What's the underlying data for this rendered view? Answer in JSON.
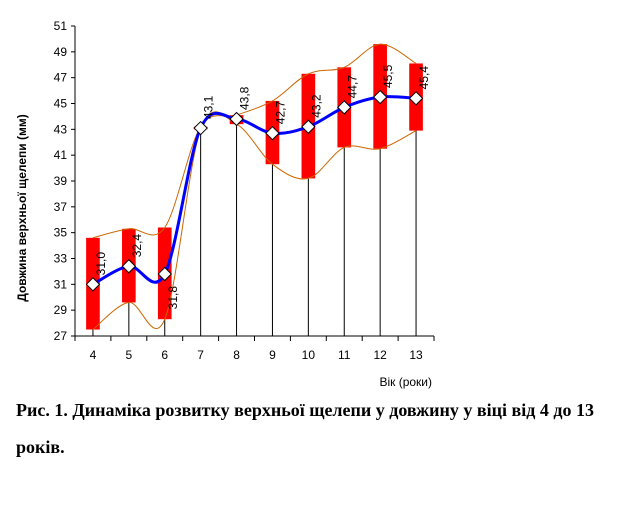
{
  "chart_data": {
    "type": "line",
    "title": "",
    "xlabel": "Вік (роки)",
    "ylabel": "Довжина верхньої щелепи (мм)",
    "ylim": [
      27,
      51
    ],
    "yticks": [
      "27",
      "29",
      "31",
      "33",
      "35",
      "37",
      "39",
      "41",
      "43",
      "45",
      "47",
      "49",
      "51"
    ],
    "categories": [
      "4",
      "5",
      "6",
      "7",
      "8",
      "9",
      "10",
      "11",
      "12",
      "13"
    ],
    "series": [
      {
        "values": [
          31.0,
          32.4,
          31.8,
          43.1,
          43.8,
          42.7,
          43.2,
          44.7,
          45.5,
          45.4
        ],
        "labels": [
          "31,0",
          "32,4",
          "31,8",
          "43,1",
          "43,8",
          "42,7",
          "43,2",
          "44,7",
          "45,5",
          "45,4"
        ],
        "lower": [
          27.5,
          29.6,
          28.3,
          43.0,
          43.4,
          40.3,
          39.2,
          41.6,
          41.5,
          42.9
        ],
        "upper": [
          34.6,
          35.3,
          35.4,
          43.2,
          44.1,
          45.2,
          47.3,
          47.8,
          49.6,
          48.1
        ]
      }
    ],
    "grid": false,
    "legend": "none",
    "colors": {
      "line": "#0000ff",
      "range_bar": "#ff0000",
      "envelope": "#cc6600",
      "marker": "#ffffff"
    }
  },
  "caption": {
    "text": "Рис. 1. Динаміка розвитку верхньої щелепи у довжину у віці від 4 до 13 років."
  }
}
